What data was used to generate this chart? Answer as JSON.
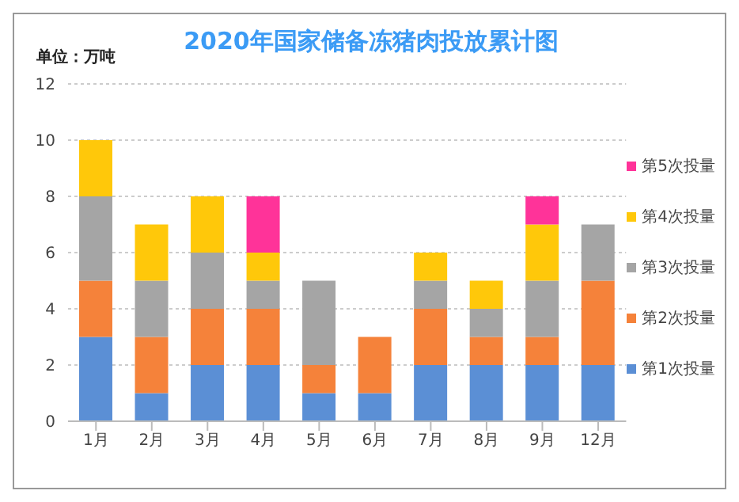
{
  "chart_data": {
    "type": "bar",
    "title": "2020年国家储备冻猪肉投放累计图",
    "ylabel": "单位：万吨",
    "stacked": true,
    "categories": [
      "1月",
      "2月",
      "3月",
      "4月",
      "5月",
      "6月",
      "7月",
      "8月",
      "9月",
      "12月"
    ],
    "series": [
      {
        "name": "第1次投量",
        "color": "#5b8fd5",
        "values": [
          3,
          1,
          2,
          2,
          1,
          1,
          2,
          2,
          2,
          2
        ]
      },
      {
        "name": "第2次投量",
        "color": "#f5823a",
        "values": [
          2,
          2,
          2,
          2,
          1,
          2,
          2,
          1,
          1,
          3
        ]
      },
      {
        "name": "第3次投量",
        "color": "#a5a5a5",
        "values": [
          3,
          2,
          2,
          1,
          3,
          null,
          1,
          1,
          2,
          2
        ]
      },
      {
        "name": "第4次投量",
        "color": "#ffc80a",
        "values": [
          2,
          2,
          2,
          1,
          null,
          null,
          1,
          1,
          2,
          null
        ]
      },
      {
        "name": "第5次投量",
        "color": "#ff3399",
        "values": [
          null,
          null,
          null,
          2,
          null,
          null,
          null,
          null,
          1,
          null
        ]
      }
    ],
    "ylim": [
      0,
      12
    ],
    "yticks": [
      0,
      2,
      4,
      6,
      8,
      10,
      12
    ],
    "grid": "y",
    "legend": "right"
  }
}
